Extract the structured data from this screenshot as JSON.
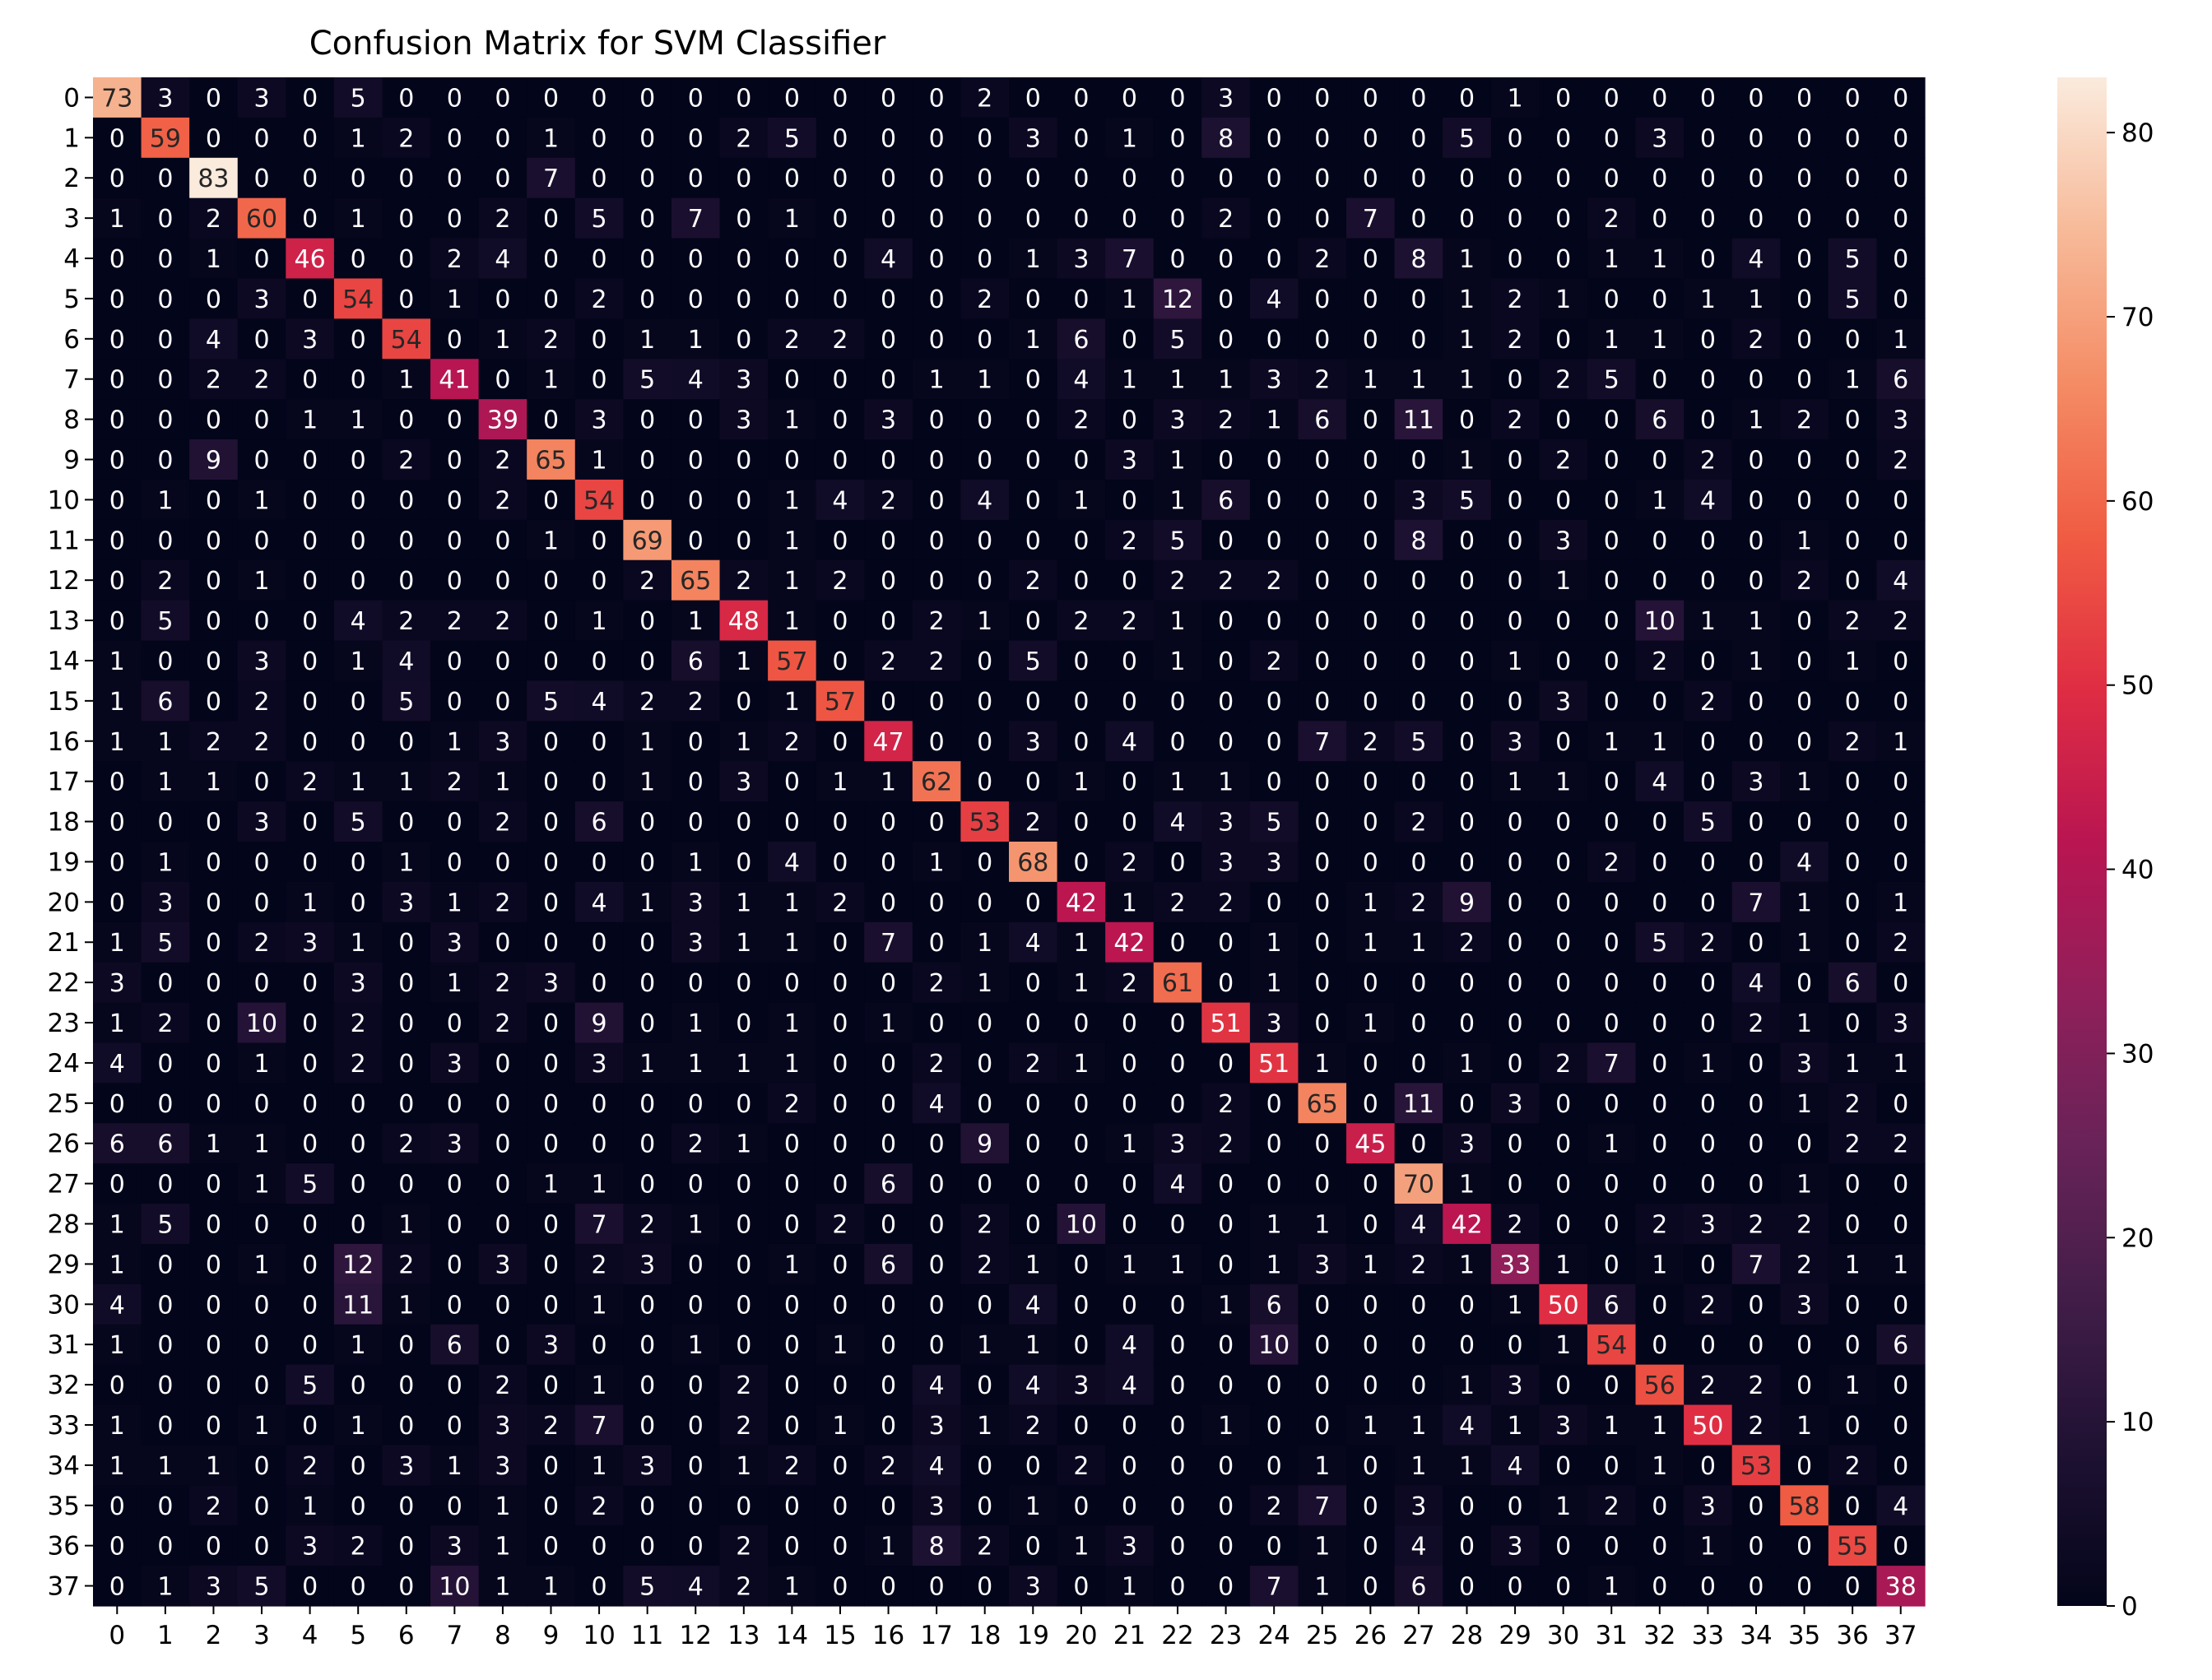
{
  "chart_data": {
    "type": "heatmap",
    "title": "Confusion Matrix for SVM Classifier",
    "xlabel": "",
    "ylabel": "",
    "x_tick_labels": [
      "0",
      "1",
      "2",
      "3",
      "4",
      "5",
      "6",
      "7",
      "8",
      "9",
      "10",
      "11",
      "12",
      "13",
      "14",
      "15",
      "16",
      "17",
      "18",
      "19",
      "20",
      "21",
      "22",
      "23",
      "24",
      "25",
      "26",
      "27",
      "28",
      "29",
      "30",
      "31",
      "32",
      "33",
      "34",
      "35",
      "36",
      "37"
    ],
    "y_tick_labels": [
      "0",
      "1",
      "2",
      "3",
      "4",
      "5",
      "6",
      "7",
      "8",
      "9",
      "10",
      "11",
      "12",
      "13",
      "14",
      "15",
      "16",
      "17",
      "18",
      "19",
      "20",
      "21",
      "22",
      "23",
      "24",
      "25",
      "26",
      "27",
      "28",
      "29",
      "30",
      "31",
      "32",
      "33",
      "34",
      "35",
      "36",
      "37"
    ],
    "colorbar": {
      "min": 0,
      "max": 83,
      "ticks": [
        0,
        10,
        20,
        30,
        40,
        50,
        60,
        70,
        80
      ],
      "ticklabels": [
        "0",
        "10",
        "20",
        "30",
        "40",
        "50",
        "60",
        "70",
        "80"
      ],
      "colormap": "rocket"
    },
    "matrix": [
      [
        73,
        3,
        0,
        3,
        0,
        5,
        0,
        0,
        0,
        0,
        0,
        0,
        0,
        0,
        0,
        0,
        0,
        0,
        2,
        0,
        0,
        0,
        0,
        3,
        0,
        0,
        0,
        0,
        0,
        1,
        0,
        0,
        0,
        0,
        0,
        0,
        0,
        0
      ],
      [
        0,
        59,
        0,
        0,
        0,
        1,
        2,
        0,
        0,
        1,
        0,
        0,
        0,
        2,
        5,
        0,
        0,
        0,
        0,
        3,
        0,
        1,
        0,
        8,
        0,
        0,
        0,
        0,
        5,
        0,
        0,
        0,
        3,
        0,
        0,
        0,
        0,
        0
      ],
      [
        0,
        0,
        83,
        0,
        0,
        0,
        0,
        0,
        0,
        7,
        0,
        0,
        0,
        0,
        0,
        0,
        0,
        0,
        0,
        0,
        0,
        0,
        0,
        0,
        0,
        0,
        0,
        0,
        0,
        0,
        0,
        0,
        0,
        0,
        0,
        0,
        0,
        0
      ],
      [
        1,
        0,
        2,
        60,
        0,
        1,
        0,
        0,
        2,
        0,
        5,
        0,
        7,
        0,
        1,
        0,
        0,
        0,
        0,
        0,
        0,
        0,
        0,
        2,
        0,
        0,
        7,
        0,
        0,
        0,
        0,
        2,
        0,
        0,
        0,
        0,
        0,
        0
      ],
      [
        0,
        0,
        1,
        0,
        46,
        0,
        0,
        2,
        4,
        0,
        0,
        0,
        0,
        0,
        0,
        0,
        4,
        0,
        0,
        1,
        3,
        7,
        0,
        0,
        0,
        2,
        0,
        8,
        1,
        0,
        0,
        1,
        1,
        0,
        4,
        0,
        5,
        0
      ],
      [
        0,
        0,
        0,
        3,
        0,
        54,
        0,
        1,
        0,
        0,
        2,
        0,
        0,
        0,
        0,
        0,
        0,
        0,
        2,
        0,
        0,
        1,
        12,
        0,
        4,
        0,
        0,
        0,
        1,
        2,
        1,
        0,
        0,
        1,
        1,
        0,
        5,
        0
      ],
      [
        0,
        0,
        4,
        0,
        3,
        0,
        54,
        0,
        1,
        2,
        0,
        1,
        1,
        0,
        2,
        2,
        0,
        0,
        0,
        1,
        6,
        0,
        5,
        0,
        0,
        0,
        0,
        0,
        1,
        2,
        0,
        1,
        1,
        0,
        2,
        0,
        0,
        1
      ],
      [
        0,
        0,
        2,
        2,
        0,
        0,
        1,
        41,
        0,
        1,
        0,
        5,
        4,
        3,
        0,
        0,
        0,
        1,
        1,
        0,
        4,
        1,
        1,
        1,
        3,
        2,
        1,
        1,
        1,
        0,
        2,
        5,
        0,
        0,
        0,
        0,
        1,
        6
      ],
      [
        0,
        0,
        0,
        0,
        1,
        1,
        0,
        0,
        39,
        0,
        3,
        0,
        0,
        3,
        1,
        0,
        3,
        0,
        0,
        0,
        2,
        0,
        3,
        2,
        1,
        6,
        0,
        11,
        0,
        2,
        0,
        0,
        6,
        0,
        1,
        2,
        0,
        3
      ],
      [
        0,
        0,
        9,
        0,
        0,
        0,
        2,
        0,
        2,
        65,
        1,
        0,
        0,
        0,
        0,
        0,
        0,
        0,
        0,
        0,
        0,
        3,
        1,
        0,
        0,
        0,
        0,
        0,
        1,
        0,
        2,
        0,
        0,
        2,
        0,
        0,
        0,
        2
      ],
      [
        0,
        1,
        0,
        1,
        0,
        0,
        0,
        0,
        2,
        0,
        54,
        0,
        0,
        0,
        1,
        4,
        2,
        0,
        4,
        0,
        1,
        0,
        1,
        6,
        0,
        0,
        0,
        3,
        5,
        0,
        0,
        0,
        1,
        4,
        0,
        0,
        0,
        0
      ],
      [
        0,
        0,
        0,
        0,
        0,
        0,
        0,
        0,
        0,
        1,
        0,
        69,
        0,
        0,
        1,
        0,
        0,
        0,
        0,
        0,
        0,
        2,
        5,
        0,
        0,
        0,
        0,
        8,
        0,
        0,
        3,
        0,
        0,
        0,
        0,
        1,
        0,
        0
      ],
      [
        0,
        2,
        0,
        1,
        0,
        0,
        0,
        0,
        0,
        0,
        0,
        2,
        65,
        2,
        1,
        2,
        0,
        0,
        0,
        2,
        0,
        0,
        2,
        2,
        2,
        0,
        0,
        0,
        0,
        0,
        1,
        0,
        0,
        0,
        0,
        2,
        0,
        4
      ],
      [
        0,
        5,
        0,
        0,
        0,
        4,
        2,
        2,
        2,
        0,
        1,
        0,
        1,
        48,
        1,
        0,
        0,
        2,
        1,
        0,
        2,
        2,
        1,
        0,
        0,
        0,
        0,
        0,
        0,
        0,
        0,
        0,
        10,
        1,
        1,
        0,
        2,
        2
      ],
      [
        1,
        0,
        0,
        3,
        0,
        1,
        4,
        0,
        0,
        0,
        0,
        0,
        6,
        1,
        57,
        0,
        2,
        2,
        0,
        5,
        0,
        0,
        1,
        0,
        2,
        0,
        0,
        0,
        0,
        1,
        0,
        0,
        2,
        0,
        1,
        0,
        1,
        0
      ],
      [
        1,
        6,
        0,
        2,
        0,
        0,
        5,
        0,
        0,
        5,
        4,
        2,
        2,
        0,
        1,
        57,
        0,
        0,
        0,
        0,
        0,
        0,
        0,
        0,
        0,
        0,
        0,
        0,
        0,
        0,
        3,
        0,
        0,
        2,
        0,
        0,
        0,
        0
      ],
      [
        1,
        1,
        2,
        2,
        0,
        0,
        0,
        1,
        3,
        0,
        0,
        1,
        0,
        1,
        2,
        0,
        47,
        0,
        0,
        3,
        0,
        4,
        0,
        0,
        0,
        7,
        2,
        5,
        0,
        3,
        0,
        1,
        1,
        0,
        0,
        0,
        2,
        1
      ],
      [
        0,
        1,
        1,
        0,
        2,
        1,
        1,
        2,
        1,
        0,
        0,
        1,
        0,
        3,
        0,
        1,
        1,
        62,
        0,
        0,
        1,
        0,
        1,
        1,
        0,
        0,
        0,
        0,
        0,
        1,
        1,
        0,
        4,
        0,
        3,
        1,
        0,
        0
      ],
      [
        0,
        0,
        0,
        3,
        0,
        5,
        0,
        0,
        2,
        0,
        6,
        0,
        0,
        0,
        0,
        0,
        0,
        0,
        53,
        2,
        0,
        0,
        4,
        3,
        5,
        0,
        0,
        2,
        0,
        0,
        0,
        0,
        0,
        5,
        0,
        0,
        0,
        0
      ],
      [
        0,
        1,
        0,
        0,
        0,
        0,
        1,
        0,
        0,
        0,
        0,
        0,
        1,
        0,
        4,
        0,
        0,
        1,
        0,
        68,
        0,
        2,
        0,
        3,
        3,
        0,
        0,
        0,
        0,
        0,
        0,
        2,
        0,
        0,
        0,
        4,
        0,
        0
      ],
      [
        0,
        3,
        0,
        0,
        1,
        0,
        3,
        1,
        2,
        0,
        4,
        1,
        3,
        1,
        1,
        2,
        0,
        0,
        0,
        0,
        42,
        1,
        2,
        2,
        0,
        0,
        1,
        2,
        9,
        0,
        0,
        0,
        0,
        0,
        7,
        1,
        0,
        1
      ],
      [
        1,
        5,
        0,
        2,
        3,
        1,
        0,
        3,
        0,
        0,
        0,
        0,
        3,
        1,
        1,
        0,
        7,
        0,
        1,
        4,
        1,
        42,
        0,
        0,
        1,
        0,
        1,
        1,
        2,
        0,
        0,
        0,
        5,
        2,
        0,
        1,
        0,
        2
      ],
      [
        3,
        0,
        0,
        0,
        0,
        3,
        0,
        1,
        2,
        3,
        0,
        0,
        0,
        0,
        0,
        0,
        0,
        2,
        1,
        0,
        1,
        2,
        61,
        0,
        1,
        0,
        0,
        0,
        0,
        0,
        0,
        0,
        0,
        0,
        4,
        0,
        6,
        0
      ],
      [
        1,
        2,
        0,
        10,
        0,
        2,
        0,
        0,
        2,
        0,
        9,
        0,
        1,
        0,
        1,
        0,
        1,
        0,
        0,
        0,
        0,
        0,
        0,
        51,
        3,
        0,
        1,
        0,
        0,
        0,
        0,
        0,
        0,
        0,
        2,
        1,
        0,
        3
      ],
      [
        4,
        0,
        0,
        1,
        0,
        2,
        0,
        3,
        0,
        0,
        3,
        1,
        1,
        1,
        1,
        0,
        0,
        2,
        0,
        2,
        1,
        0,
        0,
        0,
        51,
        1,
        0,
        0,
        1,
        0,
        2,
        7,
        0,
        1,
        0,
        3,
        1,
        1
      ],
      [
        0,
        0,
        0,
        0,
        0,
        0,
        0,
        0,
        0,
        0,
        0,
        0,
        0,
        0,
        2,
        0,
        0,
        4,
        0,
        0,
        0,
        0,
        0,
        2,
        0,
        65,
        0,
        11,
        0,
        3,
        0,
        0,
        0,
        0,
        0,
        1,
        2,
        0
      ],
      [
        6,
        6,
        1,
        1,
        0,
        0,
        2,
        3,
        0,
        0,
        0,
        0,
        2,
        1,
        0,
        0,
        0,
        0,
        9,
        0,
        0,
        1,
        3,
        2,
        0,
        0,
        45,
        0,
        3,
        0,
        0,
        1,
        0,
        0,
        0,
        0,
        2,
        2
      ],
      [
        0,
        0,
        0,
        1,
        5,
        0,
        0,
        0,
        0,
        1,
        1,
        0,
        0,
        0,
        0,
        0,
        6,
        0,
        0,
        0,
        0,
        0,
        4,
        0,
        0,
        0,
        0,
        70,
        1,
        0,
        0,
        0,
        0,
        0,
        0,
        1,
        0,
        0
      ],
      [
        1,
        5,
        0,
        0,
        0,
        0,
        1,
        0,
        0,
        0,
        7,
        2,
        1,
        0,
        0,
        2,
        0,
        0,
        2,
        0,
        10,
        0,
        0,
        0,
        1,
        1,
        0,
        4,
        42,
        2,
        0,
        0,
        2,
        3,
        2,
        2,
        0,
        0
      ],
      [
        1,
        0,
        0,
        1,
        0,
        12,
        2,
        0,
        3,
        0,
        2,
        3,
        0,
        0,
        1,
        0,
        6,
        0,
        2,
        1,
        0,
        1,
        1,
        0,
        1,
        3,
        1,
        2,
        1,
        33,
        1,
        0,
        1,
        0,
        7,
        2,
        1,
        1
      ],
      [
        4,
        0,
        0,
        0,
        0,
        11,
        1,
        0,
        0,
        0,
        1,
        0,
        0,
        0,
        0,
        0,
        0,
        0,
        0,
        4,
        0,
        0,
        0,
        1,
        6,
        0,
        0,
        0,
        0,
        1,
        50,
        6,
        0,
        2,
        0,
        3,
        0,
        0
      ],
      [
        1,
        0,
        0,
        0,
        0,
        1,
        0,
        6,
        0,
        3,
        0,
        0,
        1,
        0,
        0,
        1,
        0,
        0,
        1,
        1,
        0,
        4,
        0,
        0,
        10,
        0,
        0,
        0,
        0,
        0,
        1,
        54,
        0,
        0,
        0,
        0,
        0,
        6
      ],
      [
        0,
        0,
        0,
        0,
        5,
        0,
        0,
        0,
        2,
        0,
        1,
        0,
        0,
        2,
        0,
        0,
        0,
        4,
        0,
        4,
        3,
        4,
        0,
        0,
        0,
        0,
        0,
        0,
        1,
        3,
        0,
        0,
        56,
        2,
        2,
        0,
        1,
        0
      ],
      [
        1,
        0,
        0,
        1,
        0,
        1,
        0,
        0,
        3,
        2,
        7,
        0,
        0,
        2,
        0,
        1,
        0,
        3,
        1,
        2,
        0,
        0,
        0,
        1,
        0,
        0,
        1,
        1,
        4,
        1,
        3,
        1,
        1,
        50,
        2,
        1,
        0,
        0
      ],
      [
        1,
        1,
        1,
        0,
        2,
        0,
        3,
        1,
        3,
        0,
        1,
        3,
        0,
        1,
        2,
        0,
        2,
        4,
        0,
        0,
        2,
        0,
        0,
        0,
        0,
        1,
        0,
        1,
        1,
        4,
        0,
        0,
        1,
        0,
        53,
        0,
        2,
        0
      ],
      [
        0,
        0,
        2,
        0,
        1,
        0,
        0,
        0,
        1,
        0,
        2,
        0,
        0,
        0,
        0,
        0,
        0,
        3,
        0,
        1,
        0,
        0,
        0,
        0,
        2,
        7,
        0,
        3,
        0,
        0,
        1,
        2,
        0,
        3,
        0,
        58,
        0,
        4
      ],
      [
        0,
        0,
        0,
        0,
        3,
        2,
        0,
        3,
        1,
        0,
        0,
        0,
        0,
        2,
        0,
        0,
        1,
        8,
        2,
        0,
        1,
        3,
        0,
        0,
        0,
        1,
        0,
        4,
        0,
        3,
        0,
        0,
        0,
        1,
        0,
        0,
        55,
        0
      ],
      [
        0,
        1,
        3,
        5,
        0,
        0,
        0,
        10,
        1,
        1,
        0,
        5,
        4,
        2,
        1,
        0,
        0,
        0,
        0,
        3,
        0,
        1,
        0,
        0,
        7,
        1,
        0,
        6,
        0,
        0,
        0,
        1,
        0,
        0,
        0,
        0,
        0,
        38
      ]
    ]
  }
}
